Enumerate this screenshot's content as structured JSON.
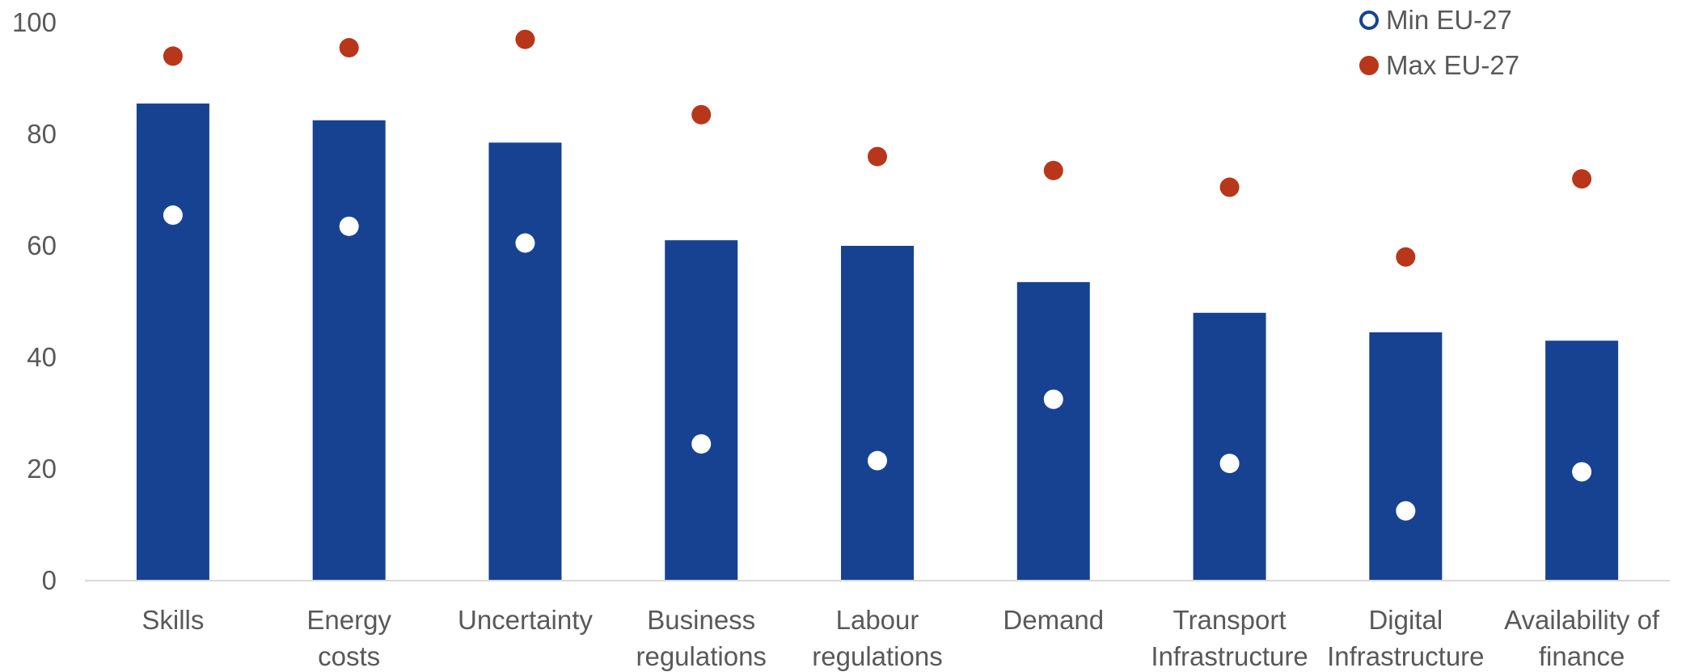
{
  "chart_data": {
    "type": "bar",
    "title": "",
    "xlabel": "",
    "ylabel": "",
    "ylim": [
      0,
      100
    ],
    "yticks": [
      0,
      20,
      40,
      60,
      80,
      100
    ],
    "grid": false,
    "legend_position": "top-right",
    "categories": [
      [
        "Skills"
      ],
      [
        "Energy",
        "costs"
      ],
      [
        "Uncertainty"
      ],
      [
        "Business",
        "regulations"
      ],
      [
        "Labour",
        "regulations"
      ],
      [
        "Demand"
      ],
      [
        "Transport",
        "Infrastructure"
      ],
      [
        "Digital",
        "Infrastructure"
      ],
      [
        "Availability of",
        "finance"
      ]
    ],
    "bars": {
      "values": [
        85.5,
        82.5,
        78.5,
        61,
        60,
        53.5,
        48,
        44.5,
        43
      ]
    },
    "series": [
      {
        "name": "Min EU-27",
        "values": [
          65.5,
          63.5,
          60.5,
          24.5,
          21.5,
          32.5,
          21,
          12.5,
          19.5
        ]
      },
      {
        "name": "Max EU-27",
        "values": [
          94,
          95.5,
          97,
          83.5,
          76,
          73.5,
          70.5,
          58,
          72
        ]
      }
    ],
    "colors": {
      "bar": "#174291",
      "min_marker": "#ffffff",
      "min_legend_outline": "#174291",
      "max_marker": "#B8361A",
      "axis": "#d9d9d9",
      "text": "#595959"
    }
  }
}
